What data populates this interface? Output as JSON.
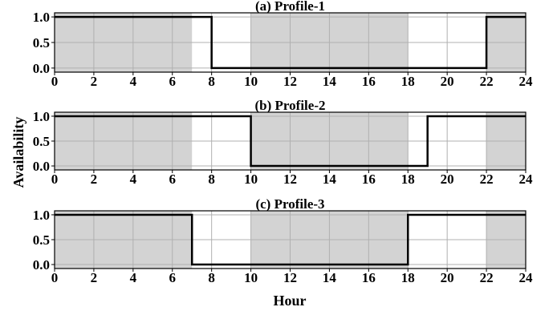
{
  "chart_data": {
    "type": "line",
    "step": "post",
    "xlabel": "Hour",
    "ylabel": "Availability",
    "xlim": [
      0,
      24
    ],
    "ylim": [
      0,
      1
    ],
    "xticks": [
      "0",
      "2",
      "4",
      "6",
      "8",
      "10",
      "12",
      "14",
      "16",
      "18",
      "20",
      "22",
      "24"
    ],
    "yticks": [
      "0.0",
      "0.5",
      "1.0"
    ],
    "grid": true,
    "line_color": "#000000",
    "shade_color": "#d3d3d3",
    "grid_color": "#b0b0b0",
    "shaded_intervals": [
      [
        0,
        7
      ],
      [
        10,
        18
      ],
      [
        22,
        24
      ]
    ],
    "panels": [
      {
        "title": "(a) Profile-1",
        "x": [
          0,
          8,
          22,
          24
        ],
        "y": [
          1,
          0,
          1,
          1
        ]
      },
      {
        "title": "(b) Profile-2",
        "x": [
          0,
          10,
          19,
          24
        ],
        "y": [
          1,
          0,
          1,
          1
        ]
      },
      {
        "title": "(c) Profile-3",
        "x": [
          0,
          7,
          18,
          24
        ],
        "y": [
          1,
          0,
          1,
          1
        ]
      }
    ]
  }
}
